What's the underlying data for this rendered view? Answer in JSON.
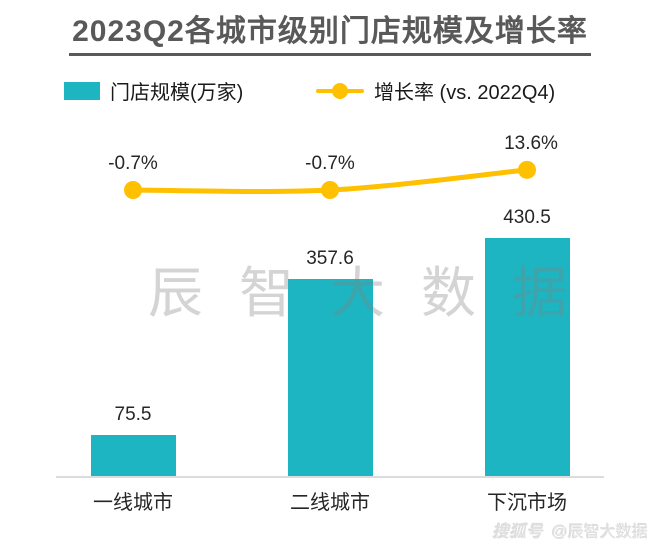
{
  "title": "2023Q2各城市级别门店规模及增长率",
  "legend": {
    "bar_item": {
      "label": "门店规模(万家)",
      "color": "#1db5c1"
    },
    "line_item": {
      "label": "增长率 (vs. 2022Q4)",
      "color": "#ffc000"
    }
  },
  "chart_data": {
    "type": "bar+line combo",
    "title": "2023Q2各城市级别门店规模及增长率",
    "categories": [
      "一线城市",
      "二线城市",
      "下沉市场"
    ],
    "series": [
      {
        "name": "门店规模(万家)",
        "type": "bar",
        "values": [
          75.5,
          357.6,
          430.5
        ],
        "labels": [
          "75.5",
          "357.6",
          "430.5"
        ],
        "color": "#1db5c1"
      },
      {
        "name": "增长率 (vs. 2022Q4)",
        "type": "line",
        "values": [
          -0.7,
          -0.7,
          13.6
        ],
        "labels": [
          "-0.7%",
          "-0.7%",
          "13.6%"
        ],
        "color": "#ffc000"
      }
    ],
    "xlabel": "",
    "ylabel": "",
    "grid": false,
    "axes_visible": false,
    "legend_position": "top",
    "data_labels": true
  },
  "watermarks": {
    "center": "辰智大数据",
    "bottom_logo": "搜狐号",
    "bottom_handle": "@辰智大数据"
  },
  "colors": {
    "teal": "#1db5c1",
    "gold": "#ffc000",
    "title_gray": "#595959",
    "label_text": "#262626",
    "baseline_gray": "#dcdcdc"
  }
}
